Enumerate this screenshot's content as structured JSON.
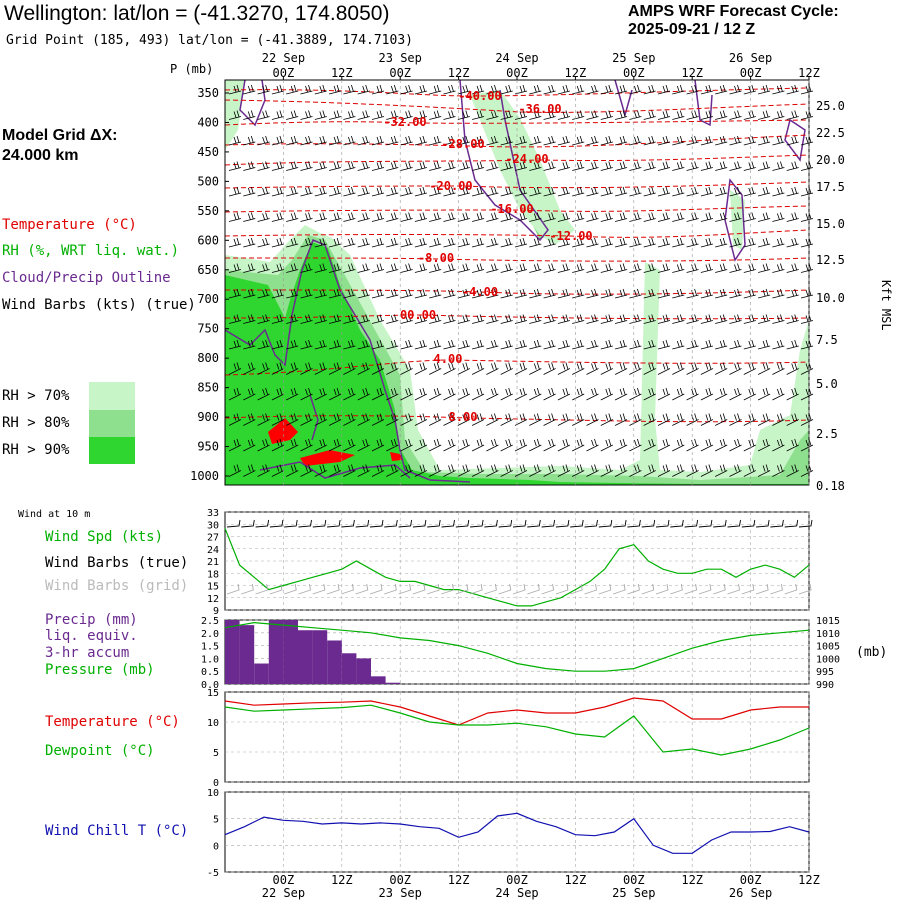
{
  "header": {
    "title": "Wellington:  lat/lon = (-41.3270, 174.8050)",
    "gridpoint": "Grid Point (185, 493) lat/lon = (-41.3889, 174.7103)",
    "forecast_line1": "AMPS WRF Forecast Cycle:",
    "forecast_line2": "2025-09-21 / 12  Z"
  },
  "left_panel": {
    "model_grid_label": "Model Grid ΔX:",
    "model_grid_value": " 24.000 km",
    "legend": [
      {
        "text": "Temperature (°C)",
        "color": "#e00000"
      },
      {
        "text": "RH (%, WRT liq. wat.)",
        "color": "#00b000"
      },
      {
        "text": "Cloud/Precip Outline",
        "color": "#6a2a90"
      },
      {
        "text": "Wind Barbs (kts) (true)",
        "color": "#000000"
      }
    ],
    "rh_legend": [
      {
        "text": "RH > 70%",
        "color": "#c8f5c8"
      },
      {
        "text": "RH > 80%",
        "color": "#8ee08e"
      },
      {
        "text": "RH > 90%",
        "color": "#2fd62f"
      }
    ]
  },
  "colors": {
    "temperature": "#e00000",
    "rh70": "#c8f5c8",
    "rh80": "#8ee08e",
    "rh90": "#2fd62f",
    "cloud": "#6a2a90",
    "wind_speed": "#00b000",
    "precip": "#6a2a90",
    "wind_chill": "#1010b0"
  },
  "time_axis": {
    "tick_labels": [
      "00Z",
      "12Z",
      "00Z",
      "12Z",
      "00Z",
      "12Z",
      "00Z",
      "12Z",
      "00Z",
      "12Z"
    ],
    "date_labels": [
      "22 Sep",
      "23 Sep",
      "24 Sep",
      "25 Sep",
      "26 Sep"
    ]
  },
  "chart_data": [
    {
      "type": "heatmap",
      "ylabel": "P (mb)",
      "y_tick_labels": [
        "350",
        "400",
        "450",
        "500",
        "550",
        "600",
        "650",
        "700",
        "750",
        "800",
        "850",
        "900",
        "950",
        "1000"
      ],
      "y2_label": "Kft MSL",
      "y2_tick_labels": [
        "25.0",
        "22.5",
        "20.0",
        "17.5",
        "15.0",
        "12.5",
        "10.0",
        "7.5",
        "5.0",
        "2.5",
        "0.18"
      ],
      "temperature_contour_labels": [
        "-40.00",
        "-36.00",
        "-32.00",
        "-28.00",
        "-24.00",
        "-20.00",
        "-16.00",
        "-12.00",
        "-8.00",
        "-4.00",
        "00.00",
        "4.00",
        "8.00"
      ]
    },
    {
      "type": "line",
      "header": "Wind at 10 m",
      "legend": [
        "Wind Spd (kts)",
        "Wind Barbs (true)",
        "Wind Barbs (grid)"
      ],
      "y_tick_labels": [
        "33",
        "30",
        "27",
        "24",
        "21",
        "18",
        "15",
        "12",
        "9"
      ],
      "ylim": [
        9,
        33
      ],
      "x_hours": [
        0,
        3,
        6,
        9,
        12,
        15,
        18,
        21,
        24,
        27,
        30,
        33,
        36,
        39,
        42,
        45,
        48,
        51,
        54,
        57,
        60,
        63,
        66,
        69,
        72,
        75,
        78,
        81,
        84,
        87,
        90,
        93,
        96,
        99,
        102,
        105,
        108,
        111,
        114,
        117,
        120
      ],
      "wind_speed": [
        29,
        20,
        17,
        14,
        15,
        16,
        17,
        18,
        19,
        21,
        19,
        17,
        16,
        16,
        15,
        14,
        14,
        13,
        12,
        11,
        10,
        10,
        11,
        12,
        14,
        16,
        19,
        24,
        25,
        21,
        19,
        18,
        18,
        19,
        19,
        17,
        19,
        20,
        19,
        17,
        20
      ]
    },
    {
      "type": "bar",
      "legend": [
        "Precip (mm)",
        "liq. equiv.",
        "3-hr accum",
        "Pressure (mb)"
      ],
      "y_tick_labels": [
        "2.5",
        "2.0",
        "1.5",
        "1.0",
        "0.5",
        "0.0"
      ],
      "ylim": [
        0,
        2.5
      ],
      "y2_tick_labels": [
        "1015",
        "1010",
        "1005",
        "1000",
        "995",
        "990"
      ],
      "y2_units": "(mb)",
      "y2lim": [
        990,
        1015
      ],
      "precip_hours": [
        0,
        3,
        6,
        9,
        12,
        15,
        18,
        21,
        24,
        27,
        30,
        33
      ],
      "precip": [
        2.5,
        2.3,
        0.8,
        2.5,
        2.5,
        2.1,
        2.1,
        1.7,
        1.2,
        1.0,
        0.3,
        0.05
      ],
      "x_hours": [
        0,
        6,
        12,
        18,
        24,
        30,
        36,
        42,
        48,
        54,
        60,
        66,
        72,
        78,
        84,
        90,
        96,
        102,
        108,
        114,
        120
      ],
      "pressure": [
        1012,
        1014,
        1013,
        1012,
        1011,
        1010,
        1008,
        1007,
        1005,
        1002,
        998,
        996,
        995,
        995,
        996,
        1000,
        1004,
        1007,
        1009,
        1010,
        1011
      ]
    },
    {
      "type": "line",
      "legend": [
        "Temperature (°C)",
        "Dewpoint (°C)"
      ],
      "y_tick_labels": [
        "15",
        "10",
        "5",
        "0"
      ],
      "ylim": [
        0,
        15
      ],
      "x_hours": [
        0,
        6,
        12,
        18,
        24,
        30,
        36,
        42,
        48,
        54,
        60,
        66,
        72,
        78,
        84,
        90,
        96,
        102,
        108,
        114,
        120
      ],
      "temperature": [
        13.5,
        12.8,
        13,
        13.2,
        13.3,
        13.5,
        12.5,
        11,
        9.5,
        11.5,
        12,
        11.5,
        11.5,
        12.5,
        14,
        13.5,
        10.5,
        10.5,
        12,
        12.5,
        12.5
      ],
      "dewpoint": [
        12.5,
        11.8,
        12,
        12.2,
        12.4,
        12.8,
        11.5,
        10,
        9.5,
        9.5,
        9.8,
        9.2,
        8,
        7.5,
        11,
        5,
        5.5,
        4.5,
        5.5,
        7,
        9
      ]
    },
    {
      "type": "line",
      "legend": [
        "Wind Chill T (°C)"
      ],
      "y_tick_labels": [
        "10",
        "5",
        "0",
        "-5"
      ],
      "ylim": [
        -5,
        10
      ],
      "x_hours": [
        0,
        4,
        8,
        12,
        16,
        20,
        24,
        28,
        32,
        36,
        40,
        44,
        48,
        52,
        56,
        60,
        64,
        68,
        72,
        76,
        80,
        84,
        88,
        92,
        96,
        100,
        104,
        108,
        112,
        116,
        120
      ],
      "wind_chill": [
        2,
        3.5,
        5.3,
        4.7,
        4.5,
        4,
        4.2,
        4,
        4.2,
        4,
        3.5,
        3.2,
        1.5,
        2.5,
        5.5,
        6,
        4.5,
        3.5,
        2,
        1.8,
        2.5,
        5,
        0,
        -1.5,
        -1.5,
        1,
        2.5,
        2.5,
        2.6,
        3.5,
        2.5
      ]
    }
  ]
}
